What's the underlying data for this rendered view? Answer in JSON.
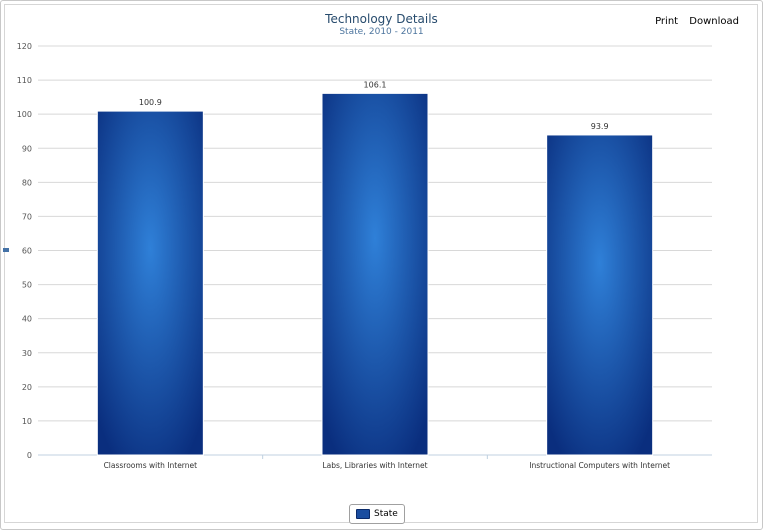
{
  "toolbar": {
    "print_label": "Print",
    "download_label": "Download"
  },
  "chart_data": {
    "type": "bar",
    "title": "Technology Details",
    "subtitle": "State, 2010 - 2011",
    "categories": [
      "Classrooms with Internet",
      "Labs, Libraries with Internet",
      "Instructional Computers with Internet"
    ],
    "series": [
      {
        "name": "State",
        "values": [
          100.9,
          106.1,
          93.9
        ]
      }
    ],
    "data_labels": [
      "100.9",
      "106.1",
      "93.9"
    ],
    "ylim": [
      0,
      120
    ],
    "yticks": [
      0,
      10,
      20,
      30,
      40,
      50,
      60,
      70,
      80,
      90,
      100,
      110,
      120
    ],
    "grid": true,
    "legend_position": "bottom-center",
    "colors": {
      "bar_center": "#2f80d8",
      "bar_edge": "#0a2e7e",
      "grid": "#d8d8d8"
    }
  }
}
